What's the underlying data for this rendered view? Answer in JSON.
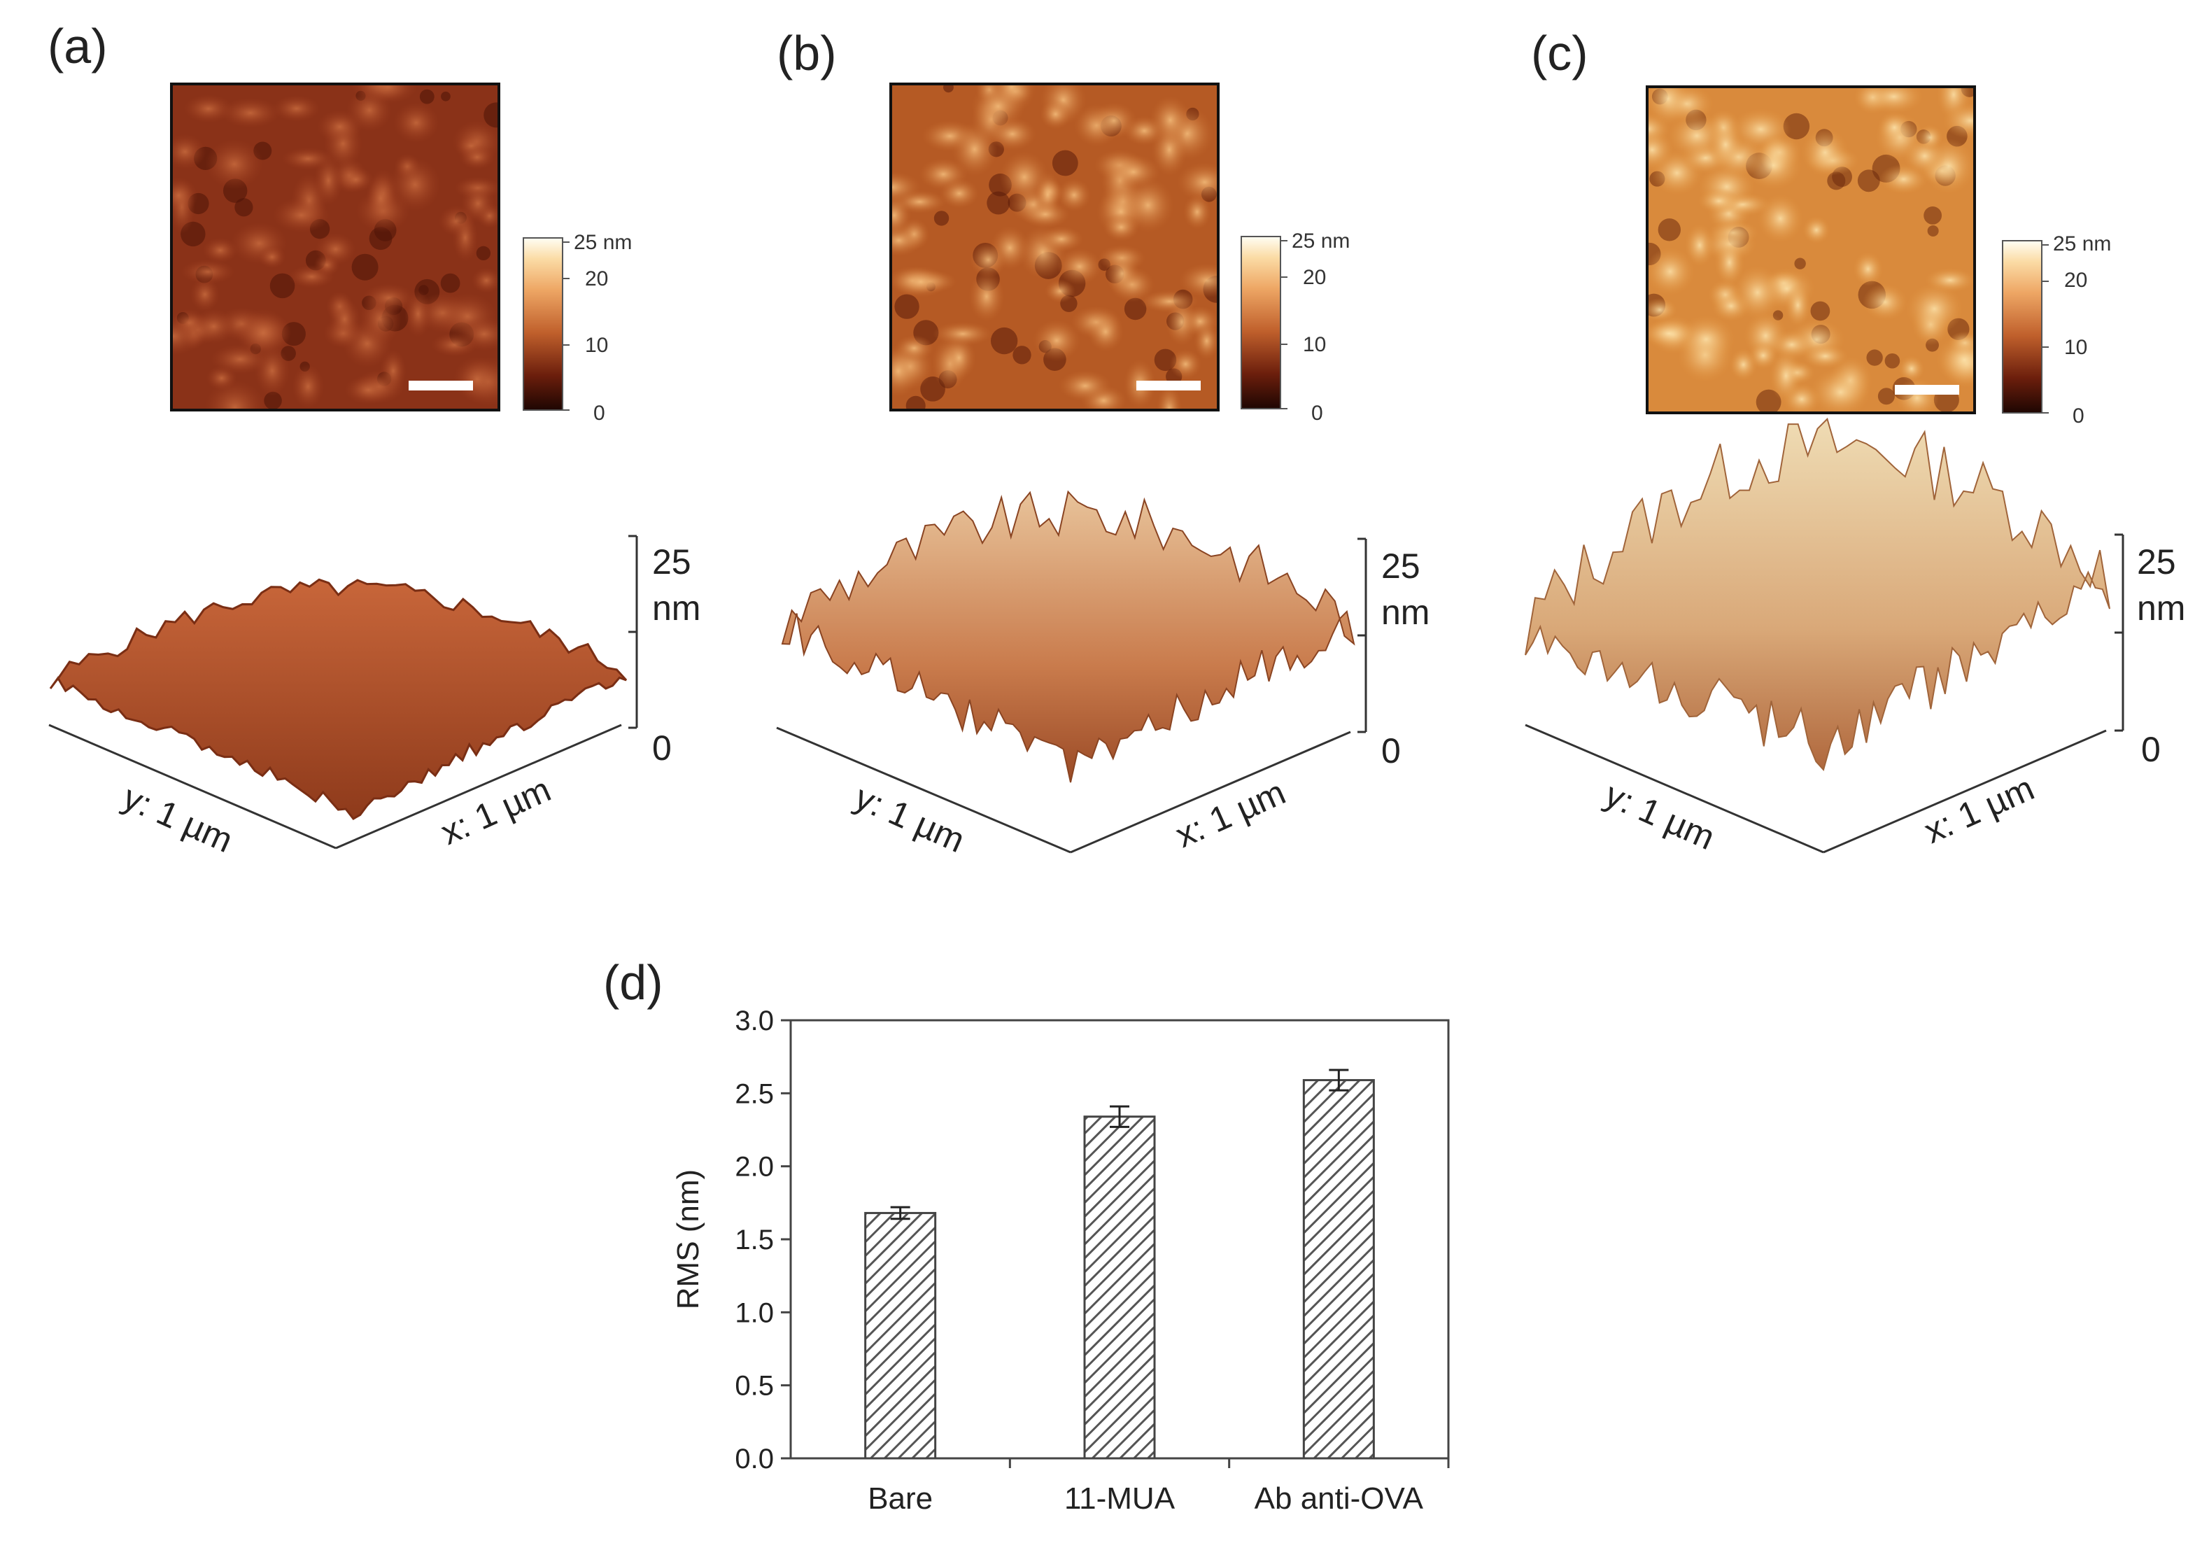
{
  "panels": [
    {
      "id": "a",
      "label": "(a)",
      "colorbar": {
        "unit_label": "25 nm",
        "ticks": [
          "20",
          "10",
          "0"
        ]
      },
      "surface_axis": {
        "top": "25",
        "unit": "nm",
        "bottom": "0"
      },
      "y_axis_label": "y: 1 µm",
      "x_axis_label": "x: 1 µm",
      "map_colors": {
        "dark": "#4d1408",
        "mid": "#9a3a1c",
        "light": "#c86b3e"
      }
    },
    {
      "id": "b",
      "label": "(b)",
      "colorbar": {
        "unit_label": "25 nm",
        "ticks": [
          "20",
          "10",
          "0"
        ]
      },
      "surface_axis": {
        "top": "25",
        "unit": "nm",
        "bottom": "0"
      },
      "y_axis_label": "y: 1 µm",
      "x_axis_label": "x: 1 µm",
      "map_colors": {
        "dark": "#5a1c0a",
        "mid": "#c66a2c",
        "light": "#f4bd78"
      }
    },
    {
      "id": "c",
      "label": "(c)",
      "colorbar": {
        "unit_label": "25 nm",
        "ticks": [
          "20",
          "10",
          "0"
        ]
      },
      "surface_axis": {
        "top": "25",
        "unit": "nm",
        "bottom": "0"
      },
      "y_axis_label": "y: 1 µm",
      "x_axis_label": "x: 1 µm",
      "map_colors": {
        "dark": "#6e2a0c",
        "mid": "#e4953f",
        "light": "#fbe0a6"
      }
    }
  ],
  "chart_data": {
    "type": "bar",
    "panel_label": "(d)",
    "title": "",
    "xlabel": "",
    "ylabel": "RMS (nm)",
    "categories": [
      "Bare",
      "11-MUA",
      "Ab anti-OVA"
    ],
    "values": [
      1.68,
      2.34,
      2.59
    ],
    "errors": [
      0.04,
      0.07,
      0.07
    ],
    "ylim": [
      0,
      3.0
    ],
    "yticks": [
      "0.0",
      "0.5",
      "1.0",
      "1.5",
      "2.0",
      "2.5",
      "3.0"
    ],
    "grid": false,
    "bar_fill": "diagonal-hatch"
  }
}
